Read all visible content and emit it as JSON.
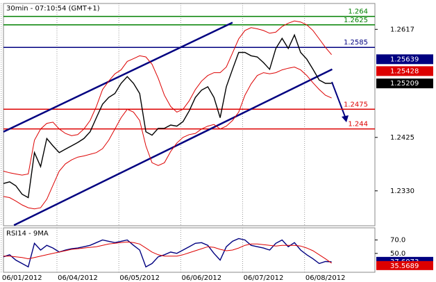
{
  "chart_data": [
    {
      "type": "line",
      "title": "30min - 07:10:54 (GMT+1)",
      "xlim": [
        0,
        60
      ],
      "xticks": [
        {
          "value": 3,
          "label": "06/01/2012"
        },
        {
          "value": 12,
          "label": "06/04/2012"
        },
        {
          "value": 22,
          "label": "06/05/2012"
        },
        {
          "value": 32,
          "label": "06/06/2012"
        },
        {
          "value": 42,
          "label": "06/07/2012"
        },
        {
          "value": 52,
          "label": "06/08/2012"
        }
      ],
      "ylim": [
        1.2268,
        1.2663
      ],
      "yticks": [
        1.2617,
        1.2425,
        {
          "value": 1.233,
          "label": "1.2330"
        }
      ],
      "series": [
        {
          "color": "#000000",
          "values": [
            1.2343,
            1.2346,
            1.2339,
            1.2324,
            1.2318,
            1.2398,
            1.2373,
            1.2423,
            1.241,
            1.2398,
            1.2404,
            1.241,
            1.2416,
            1.2423,
            1.2435,
            1.246,
            1.2484,
            1.2496,
            1.2503,
            1.2521,
            1.2533,
            1.2521,
            1.2503,
            1.2435,
            1.2429,
            1.2441,
            1.2441,
            1.2447,
            1.2445,
            1.2453,
            1.2472,
            1.2496,
            1.2509,
            1.2515,
            1.2496,
            1.246,
            1.2515,
            1.2546,
            1.2576,
            1.2576,
            1.257,
            1.2568,
            1.2558,
            1.2546,
            1.2583,
            1.2601,
            1.2583,
            1.2607,
            1.2576,
            1.2564,
            1.2546,
            1.2527,
            1.2521,
            1.2521
          ]
        },
        {
          "color": "#dd0000",
          "values": [
            1.2365,
            1.2362,
            1.236,
            1.2358,
            1.236,
            1.242,
            1.244,
            1.245,
            1.2452,
            1.244,
            1.2432,
            1.2428,
            1.243,
            1.244,
            1.2455,
            1.248,
            1.251,
            1.2525,
            1.2538,
            1.2545,
            1.256,
            1.2565,
            1.257,
            1.2568,
            1.2555,
            1.253,
            1.25,
            1.248,
            1.247,
            1.2475,
            1.249,
            1.251,
            1.2525,
            1.2535,
            1.254,
            1.254,
            1.255,
            1.2575,
            1.26,
            1.2615,
            1.262,
            1.2618,
            1.2615,
            1.261,
            1.2612,
            1.2622,
            1.2628,
            1.2632,
            1.263,
            1.2625,
            1.2615,
            1.26,
            1.2585,
            1.2572
          ]
        },
        {
          "color": "#dd0000",
          "values": [
            1.232,
            1.2318,
            1.2312,
            1.2305,
            1.23,
            1.2298,
            1.23,
            1.2315,
            1.234,
            1.2365,
            1.2378,
            1.2385,
            1.239,
            1.2392,
            1.2395,
            1.2398,
            1.2405,
            1.242,
            1.244,
            1.246,
            1.2475,
            1.247,
            1.2455,
            1.241,
            1.238,
            1.2375,
            1.238,
            1.24,
            1.2415,
            1.2425,
            1.243,
            1.2432,
            1.244,
            1.2445,
            1.2448,
            1.244,
            1.2445,
            1.2455,
            1.247,
            1.25,
            1.252,
            1.2535,
            1.254,
            1.2538,
            1.254,
            1.2545,
            1.2548,
            1.255,
            1.2545,
            1.2535,
            1.2522,
            1.251,
            1.25,
            1.2495
          ]
        }
      ],
      "levels": [
        {
          "value": 1.264,
          "color": "#008000"
        },
        {
          "value": 1.2625,
          "color": "#008000"
        },
        {
          "value": 1.2585,
          "color": "#000080"
        },
        {
          "value": 1.2475,
          "color": "#dd0000"
        },
        {
          "value": 1.244,
          "color": "#dd0000"
        }
      ],
      "trendlines": [
        {
          "x": [
            0,
            37
          ],
          "y": [
            1.2435,
            1.2629
          ]
        },
        {
          "x": [
            1.7,
            53.1
          ],
          "y": [
            1.2269,
            1.2546
          ]
        }
      ],
      "price_labels": [
        {
          "value": 1.25639,
          "color": "#000080"
        },
        {
          "value": 1.25428,
          "color": "#dd0000"
        },
        {
          "value": 1.25209,
          "color": "#000000"
        }
      ]
    },
    {
      "type": "line",
      "title": "RSI14 - 9MA",
      "ylim": [
        22,
        88
      ],
      "yticks": [
        {
          "value": 70,
          "label": "70.0"
        },
        {
          "value": 50,
          "label": "50.0"
        }
      ],
      "series": [
        {
          "color": "#000080",
          "values": [
            45,
            48,
            40,
            35,
            30,
            65,
            55,
            62,
            58,
            52,
            55,
            57,
            58,
            60,
            62,
            66,
            70,
            68,
            66,
            68,
            70,
            62,
            55,
            30,
            35,
            45,
            48,
            52,
            50,
            55,
            60,
            65,
            66,
            62,
            50,
            40,
            60,
            68,
            72,
            70,
            62,
            60,
            58,
            55,
            65,
            70,
            60,
            66,
            55,
            48,
            42,
            35,
            38,
            37.6073
          ]
        },
        {
          "color": "#dd0000",
          "values": [
            46,
            46,
            45,
            44,
            42,
            44,
            46,
            48,
            50,
            52,
            54,
            56,
            57,
            58,
            59,
            60,
            62,
            64,
            65,
            66,
            67,
            66,
            64,
            58,
            52,
            48,
            46,
            46,
            46,
            48,
            51,
            54,
            57,
            60,
            59,
            56,
            54,
            55,
            58,
            62,
            64,
            64,
            63,
            62,
            61,
            62,
            62,
            62,
            61,
            58,
            54,
            48,
            42,
            35.5689
          ]
        }
      ]
    }
  ]
}
